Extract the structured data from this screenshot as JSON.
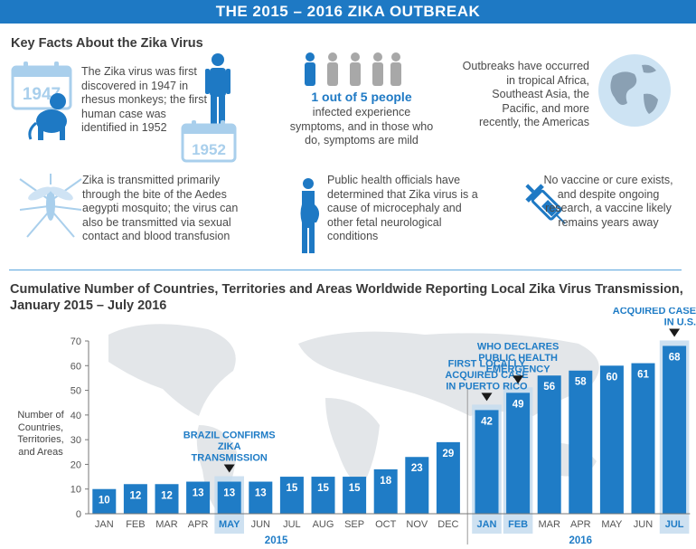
{
  "banner": {
    "title": "THE 2015 – 2016 ZIKA OUTBREAK"
  },
  "facts": {
    "section_title": "Key Facts About the Zika Virus",
    "discovery": "The Zika virus was first discovered in 1947 in rhesus monkeys; the first human case was identified in 1952",
    "cal_1947": "1947",
    "cal_1952": "1952",
    "ratio_highlight": "1 out of 5 people",
    "ratio_text": "infected experience symptoms, and in those who do, symptoms are mild",
    "outbreaks": "Outbreaks have occurred in tropical Africa, Southeast Asia, the Pacific, and more recently, the Americas",
    "transmission": "Zika is transmitted primarily through the bite of the Aedes aegypti mosquito; the virus can also be transmitted via sexual contact and blood transfusion",
    "microcephaly": "Public health officials have determined that Zika virus is a cause of microcephaly and other fetal neurological conditions",
    "vaccine": "No vaccine or cure exists, and despite ongoing research, a vaccine likely remains years away"
  },
  "colors": {
    "accent": "#1e79c4",
    "bar": "#1f7cc6",
    "highlight_band": "#c5dcef",
    "map": "#e3e6e9",
    "calendar": "#a9cfec",
    "grey_person": "#a8a8a8"
  },
  "chart_data": {
    "type": "bar",
    "title": "Cumulative Number of Countries, Territories and Areas Worldwide Reporting Local Zika Virus Transmission, January 2015 – July 2016",
    "ylabel": "Number of Countries, Territories, and Areas",
    "ylim": [
      0,
      70
    ],
    "yticks": [
      0,
      10,
      20,
      30,
      40,
      50,
      60,
      70
    ],
    "categories": [
      "JAN",
      "FEB",
      "MAR",
      "APR",
      "MAY",
      "JUN",
      "JUL",
      "AUG",
      "SEP",
      "OCT",
      "NOV",
      "DEC",
      "JAN",
      "FEB",
      "MAR",
      "APR",
      "MAY",
      "JUN",
      "JUL"
    ],
    "values": [
      10,
      12,
      12,
      13,
      13,
      13,
      15,
      15,
      15,
      18,
      23,
      29,
      42,
      49,
      56,
      58,
      60,
      61,
      68
    ],
    "value_labels": [
      "10",
      "12",
      "12",
      "13",
      "13",
      "13",
      "15",
      "15",
      "15",
      "18",
      "23",
      "29",
      "42",
      "49",
      "56",
      "58",
      "60",
      "61",
      "68"
    ],
    "year_labels": [
      "2015",
      "2016"
    ],
    "highlighted_months": [
      4,
      12,
      13,
      18
    ],
    "annotations": [
      {
        "index": 4,
        "text": "BRAZIL CONFIRMS ZIKA TRANSMISSION"
      },
      {
        "index": 12,
        "text": "FIRST LOCALLY ACQUIRED CASE IN PUERTO RICO"
      },
      {
        "index": 13,
        "text": "WHO DECLARES PUBLIC HEALTH EMERGENCY"
      },
      {
        "index": 18,
        "text": "FIRST LOCALLY ACQUIRED CASE IN U.S."
      }
    ]
  }
}
